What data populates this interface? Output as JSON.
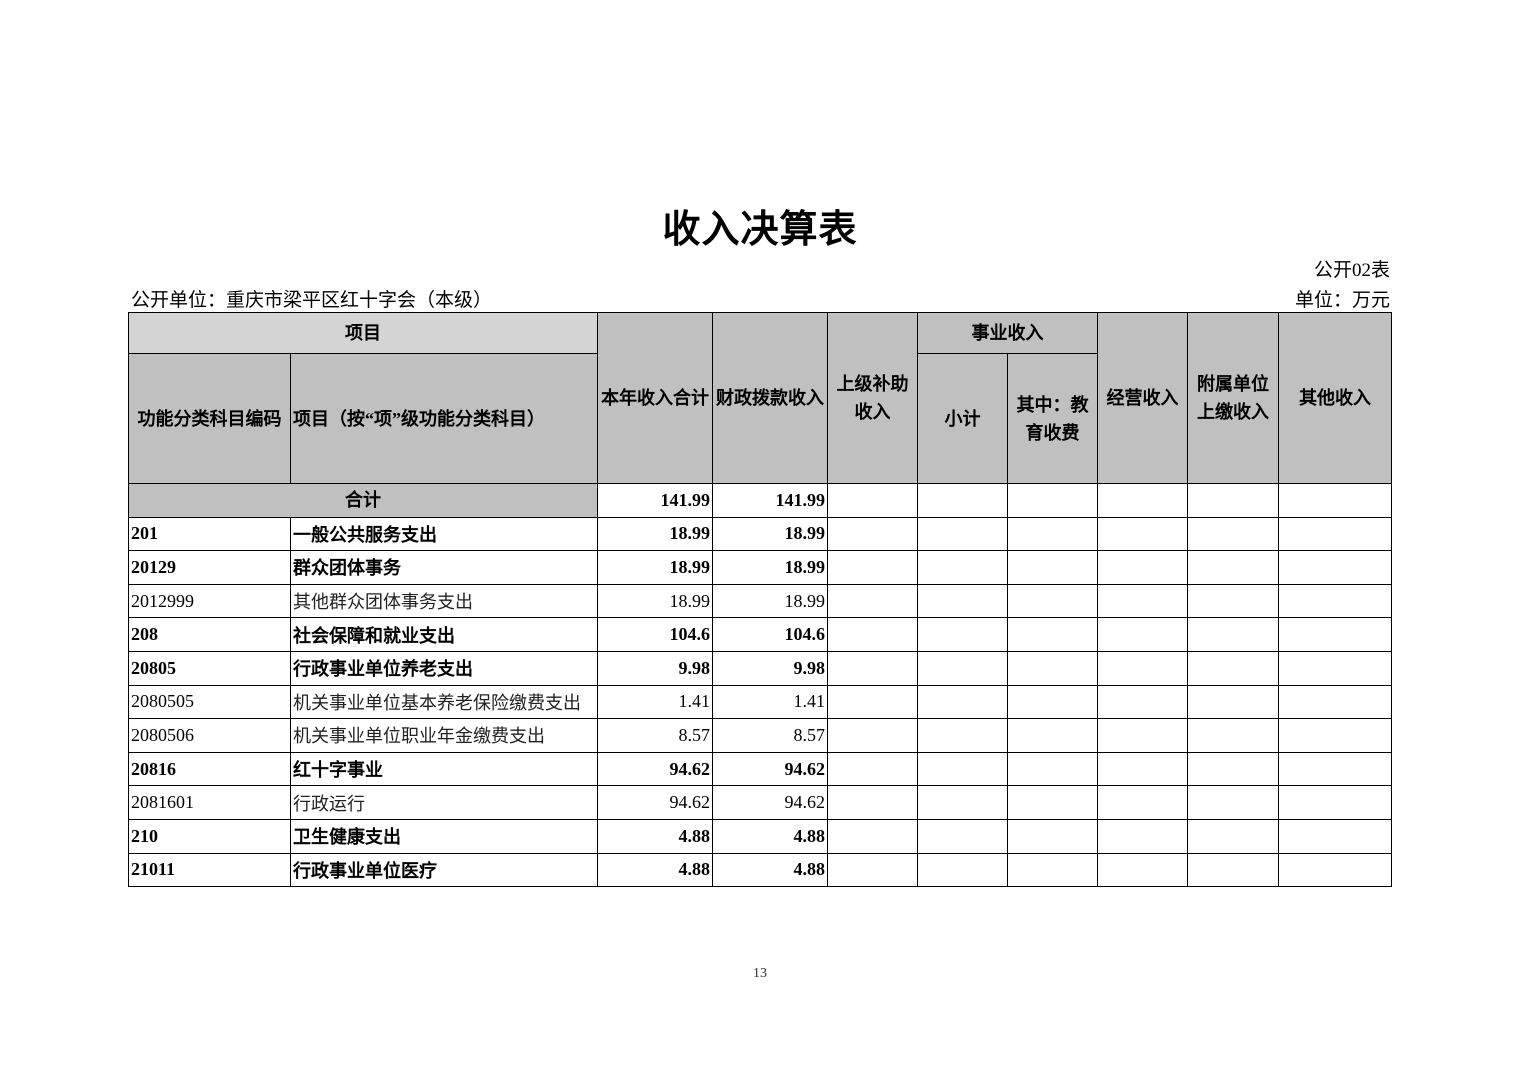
{
  "title": "收入决算表",
  "form_no": "公开02表",
  "unit_org": "公开单位：重庆市梁平区红十字会（本级）",
  "unit_money": "单位：万元",
  "headers": {
    "item_group": "项目",
    "code": "功能分类科目编码",
    "item_name": "项目（按“项”级功能分类科目）",
    "total_income": "本年收入合计",
    "fiscal": "财政拨款收入",
    "superior_subsidy": "上级补助收入",
    "business_group": "事业收入",
    "subtotal": "小计",
    "education_fee": "其中：教育收费",
    "operating": "经营收入",
    "affiliated": "附属单位上缴收入",
    "other": "其他收入"
  },
  "total_row": {
    "label": "合计",
    "total_income": "141.99",
    "fiscal": "141.99"
  },
  "rows": [
    {
      "code": "201",
      "name": "一般公共服务支出",
      "total_income": "18.99",
      "fiscal": "18.99",
      "bold": true
    },
    {
      "code": "20129",
      "name": "群众团体事务",
      "total_income": "18.99",
      "fiscal": "18.99",
      "bold": true
    },
    {
      "code": "2012999",
      "name": "其他群众团体事务支出",
      "total_income": "18.99",
      "fiscal": "18.99",
      "bold": false
    },
    {
      "code": "208",
      "name": "社会保障和就业支出",
      "total_income": "104.6",
      "fiscal": "104.6",
      "bold": true
    },
    {
      "code": "20805",
      "name": "行政事业单位养老支出",
      "total_income": "9.98",
      "fiscal": "9.98",
      "bold": true
    },
    {
      "code": "2080505",
      "name": "机关事业单位基本养老保险缴费支出",
      "total_income": "1.41",
      "fiscal": "1.41",
      "bold": false
    },
    {
      "code": "2080506",
      "name": "机关事业单位职业年金缴费支出",
      "total_income": "8.57",
      "fiscal": "8.57",
      "bold": false
    },
    {
      "code": "20816",
      "name": "红十字事业",
      "total_income": "94.62",
      "fiscal": "94.62",
      "bold": true
    },
    {
      "code": "2081601",
      "name": "行政运行",
      "total_income": "94.62",
      "fiscal": "94.62",
      "bold": false
    },
    {
      "code": "210",
      "name": "卫生健康支出",
      "total_income": "4.88",
      "fiscal": "4.88",
      "bold": true
    },
    {
      "code": "21011",
      "name": "行政事业单位医疗",
      "total_income": "4.88",
      "fiscal": "4.88",
      "bold": true
    }
  ],
  "page_number": "13"
}
